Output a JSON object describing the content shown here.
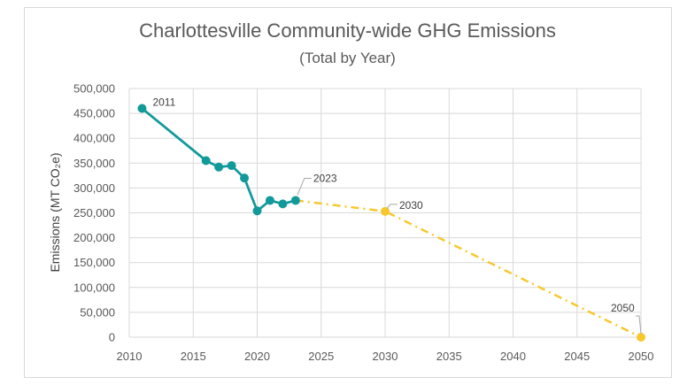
{
  "chart_data": {
    "type": "line",
    "title": "Charlottesville Community-wide GHG Emissions",
    "subtitle": "(Total by Year)",
    "ylabel": "Emissions (MT CO₂e)",
    "xlabel": "",
    "xlim": [
      2010,
      2050
    ],
    "ylim": [
      0,
      500000
    ],
    "x_ticks": [
      "2010",
      "2015",
      "2020",
      "2025",
      "2030",
      "2035",
      "2040",
      "2045",
      "2050"
    ],
    "y_ticks": [
      "0",
      "50,000",
      "100,000",
      "150,000",
      "200,000",
      "250,000",
      "300,000",
      "350,000",
      "400,000",
      "450,000",
      "500,000"
    ],
    "grid": true,
    "series": [
      {
        "style": "solid-markers",
        "color": "#12999a",
        "points": [
          {
            "x": 2011,
            "y": 460000
          },
          {
            "x": 2016,
            "y": 355000
          },
          {
            "x": 2017,
            "y": 342000
          },
          {
            "x": 2018,
            "y": 345000
          },
          {
            "x": 2019,
            "y": 320000
          },
          {
            "x": 2020,
            "y": 254000
          },
          {
            "x": 2021,
            "y": 275000
          },
          {
            "x": 2022,
            "y": 268000
          },
          {
            "x": 2023,
            "y": 275000
          }
        ]
      },
      {
        "style": "dash-dot",
        "color": "#f7c82e",
        "points": [
          {
            "x": 2023,
            "y": 275000
          },
          {
            "x": 2030,
            "y": 253000
          },
          {
            "x": 2050,
            "y": 0
          }
        ],
        "markers_at": [
          2030,
          2050
        ]
      }
    ],
    "annotations": [
      {
        "text": "2011",
        "x": 2011,
        "y": 460000,
        "leader": false
      },
      {
        "text": "2023",
        "x": 2023,
        "y": 275000,
        "leader": true
      },
      {
        "text": "2030",
        "x": 2030,
        "y": 253000,
        "leader": true
      },
      {
        "text": "2050",
        "x": 2050,
        "y": 0,
        "leader": true
      }
    ]
  }
}
